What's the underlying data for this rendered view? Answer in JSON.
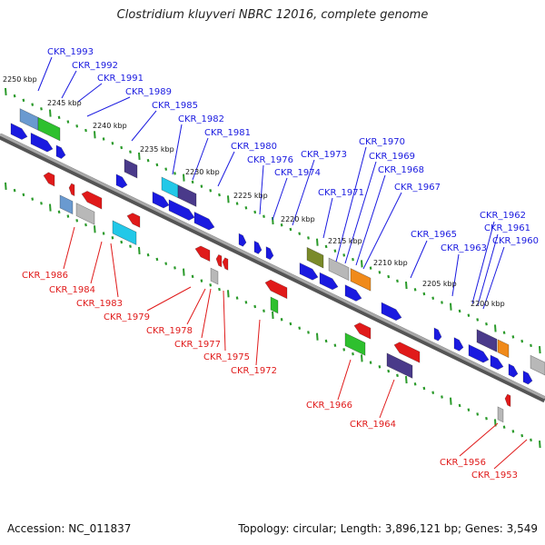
{
  "title": "Clostridium kluyveri NBRC 12016, complete genome",
  "accession": "Accession: NC_011837",
  "summary": "Topology: circular; Length: 3,896,121 bp; Genes: 3,549",
  "colors": {
    "backbone": "#8a8a8a",
    "forward_gene": "#1a1ae0",
    "reverse_gene": "#e01a1a",
    "tick": "#2a9a2a",
    "cog_green": "#2ec02e",
    "cog_lightblue": "#6a9ad0",
    "cog_purple": "#4a3a8a",
    "cog_cyan": "#22c8e8",
    "cog_grey": "#b8b8b8",
    "cog_orange": "#f08a1a",
    "cog_olive": "#7a8a2a"
  },
  "scale_labels": [
    "2250 kbp",
    "2245 kbp",
    "2240 kbp",
    "2235 kbp",
    "2230 kbp",
    "2225 kbp",
    "2220 kbp",
    "2215 kbp",
    "2210 kbp",
    "2205 kbp",
    "2200 kbp"
  ],
  "forward_labels": [
    "CKR_1993",
    "CKR_1992",
    "CKR_1991",
    "CKR_1989",
    "CKR_1985",
    "CKR_1982",
    "CKR_1981",
    "CKR_1980",
    "CKR_1976",
    "CKR_1974",
    "CKR_1973",
    "CKR_1971",
    "CKR_1970",
    "CKR_1969",
    "CKR_1968",
    "CKR_1967",
    "CKR_1965",
    "CKR_1963",
    "CKR_1962",
    "CKR_1961",
    "CKR_1960"
  ],
  "reverse_labels": [
    "CKR_1986",
    "CKR_1984",
    "CKR_1983",
    "CKR_1979",
    "CKR_1978",
    "CKR_1977",
    "CKR_1975",
    "CKR_1972",
    "CKR_1966",
    "CKR_1964",
    "CKR_1956",
    "CKR_1953"
  ]
}
